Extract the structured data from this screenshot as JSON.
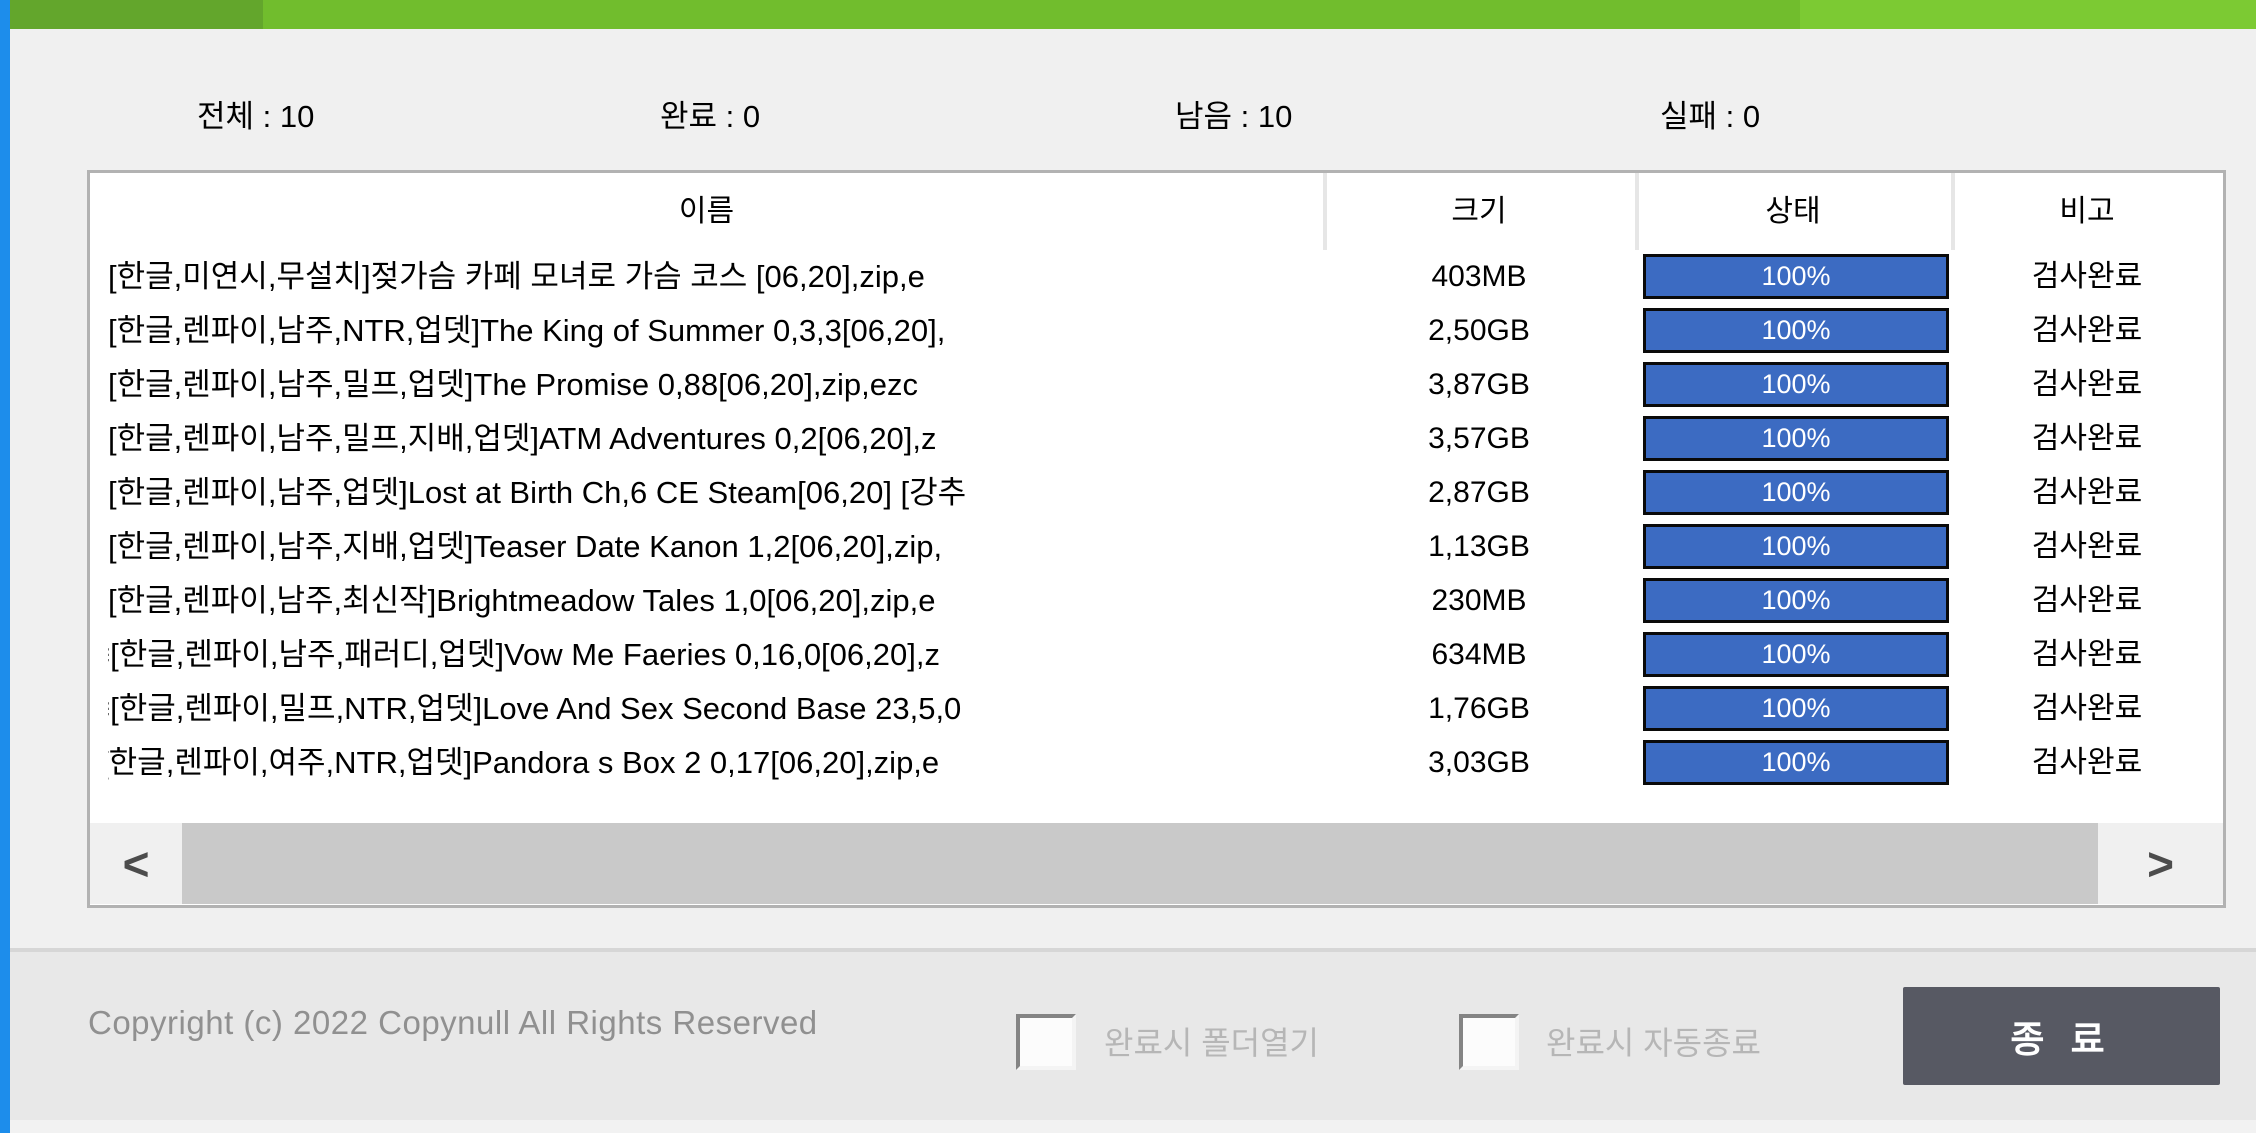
{
  "window": {
    "accent_colors": [
      "#63a62c",
      "#71bd2d",
      "#7cca33"
    ],
    "side_strip_color": "#1d8deb"
  },
  "stats": {
    "items": [
      "전체 : 10",
      "완료 : 0",
      "남음 : 10",
      "실패 : 0"
    ]
  },
  "table": {
    "columns": [
      "이름",
      "크기",
      "상태",
      "비고"
    ],
    "progress_color": "#3c6bc2",
    "rows": [
      {
        "prefix": "",
        "name": "[한글,미연시,무설치]젖가슴 카페 모녀로 가슴 코스 [06,20],zip,e",
        "size": "403MB",
        "progress": "100%",
        "note": "검사완료"
      },
      {
        "prefix": "",
        "name": "[한글,렌파이,남주,NTR,업뎃]The King of Summer 0,3,3[06,20],",
        "size": "2,50GB",
        "progress": "100%",
        "note": "검사완료"
      },
      {
        "prefix": "",
        "name": "[한글,렌파이,남주,밀프,업뎃]The Promise 0,88[06,20],zip,ezc",
        "size": "3,87GB",
        "progress": "100%",
        "note": "검사완료"
      },
      {
        "prefix": "",
        "name": "[한글,렌파이,남주,밀프,지배,업뎃]ATM Adventures 0,2[06,20],z",
        "size": "3,57GB",
        "progress": "100%",
        "note": "검사완료"
      },
      {
        "prefix": "",
        "name": "[한글,렌파이,남주,업뎃]Lost at Birth Ch,6 CE Steam[06,20] [강추",
        "size": "2,87GB",
        "progress": "100%",
        "note": "검사완료"
      },
      {
        "prefix": "",
        "name": "[한글,렌파이,남주,지배,업뎃]Teaser Date Kanon 1,2[06,20],zip,",
        "size": "1,13GB",
        "progress": "100%",
        "note": "검사완료"
      },
      {
        "prefix": "",
        "name": "[한글,렌파이,남주,최신작]Brightmeadow Tales 1,0[06,20],zip,e",
        "size": "230MB",
        "progress": "100%",
        "note": "검사완료"
      },
      {
        "prefix": "≡",
        "name": "[한글,렌파이,남주,패러디,업뎃]Vow Me Faeries 0,16,0[06,20],z",
        "size": "634MB",
        "progress": "100%",
        "note": "검사완료"
      },
      {
        "prefix": "≡",
        "name": "[한글,렌파이,밀프,NTR,업뎃]Love And Sex Second Base 23,5,0",
        "size": "1,76GB",
        "progress": "100%",
        "note": "검사완료"
      },
      {
        "prefix": "|",
        "name": "[한글,렌파이,여주,NTR,업뎃]Pandora s Box 2 0,17[06,20],zip,e",
        "size": "3,03GB",
        "progress": "100%",
        "note": "검사완료"
      }
    ]
  },
  "scrollbar": {
    "left_arrow": "<",
    "right_arrow": ">"
  },
  "footer": {
    "copyright": "Copyright (c) 2022 Copynull All Rights Reserved",
    "open_folder_label": "완료시 폴더열기",
    "auto_exit_label": "완료시 자동종료",
    "close_button": "종 료"
  }
}
